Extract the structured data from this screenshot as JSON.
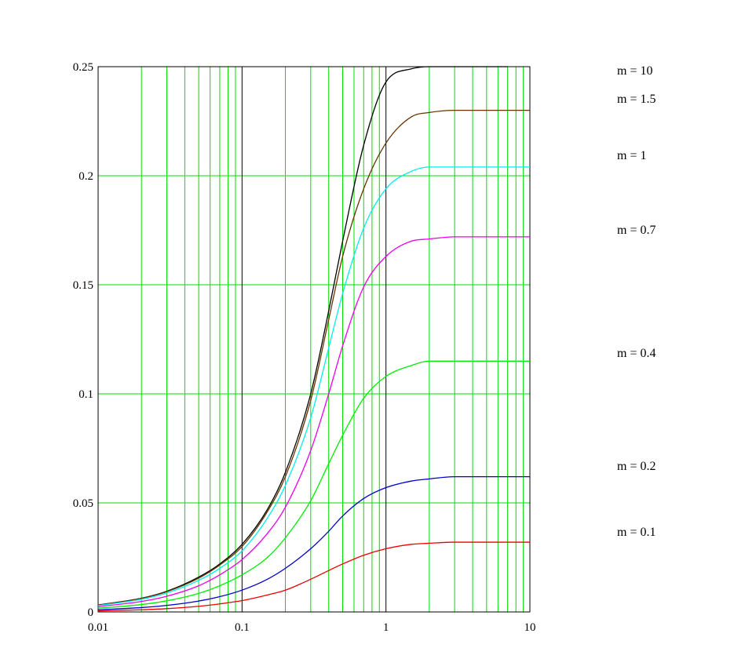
{
  "chart_data": {
    "type": "line",
    "title": "",
    "xlabel": "",
    "ylabel": "",
    "xscale": "log",
    "xlim": [
      0.01,
      10
    ],
    "ylim": [
      0,
      0.25
    ],
    "grid": true,
    "grid_color": "#00dd00",
    "axis_color": "#000000",
    "x_ticks": [
      {
        "value": 0.01,
        "label": "0.01"
      },
      {
        "value": 0.1,
        "label": "0.1"
      },
      {
        "value": 1,
        "label": "1"
      },
      {
        "value": 10,
        "label": "10"
      }
    ],
    "y_ticks": [
      {
        "value": 0,
        "label": "0"
      },
      {
        "value": 0.05,
        "label": "0.05"
      },
      {
        "value": 0.1,
        "label": "0.1"
      },
      {
        "value": 0.15,
        "label": "0.15"
      },
      {
        "value": 0.2,
        "label": "0.2"
      },
      {
        "value": 0.25,
        "label": "0.25"
      }
    ],
    "x": [
      0.01,
      0.02,
      0.03,
      0.05,
      0.07,
      0.1,
      0.15,
      0.2,
      0.3,
      0.4,
      0.5,
      0.7,
      1,
      1.5,
      2,
      3,
      5,
      7,
      10
    ],
    "series": [
      {
        "name": "m = 10",
        "label": "m = 10",
        "color": "#000000",
        "x_end": 7,
        "values": [
          0.0032,
          0.0063,
          0.0095,
          0.016,
          0.022,
          0.031,
          0.047,
          0.064,
          0.1,
          0.138,
          0.17,
          0.214,
          0.243,
          0.249,
          0.25,
          0.25,
          0.25,
          0.25,
          null
        ]
      },
      {
        "name": "m = 1.5",
        "label": "m = 1.5",
        "color": "#663300",
        "values": [
          0.0031,
          0.0062,
          0.0093,
          0.0155,
          0.0215,
          0.03,
          0.046,
          0.062,
          0.097,
          0.134,
          0.163,
          0.194,
          0.215,
          0.227,
          0.229,
          0.23,
          0.23,
          0.23,
          0.23
        ]
      },
      {
        "name": "m = 1",
        "label": "m = 1",
        "color": "#00eeee",
        "values": [
          0.0029,
          0.0058,
          0.0087,
          0.0145,
          0.02,
          0.028,
          0.043,
          0.058,
          0.089,
          0.121,
          0.146,
          0.176,
          0.194,
          0.202,
          0.204,
          0.204,
          0.204,
          0.204,
          0.204
        ]
      },
      {
        "name": "m = 0.7",
        "label": "m = 0.7",
        "color": "#ee00ee",
        "values": [
          0.0024,
          0.0048,
          0.0072,
          0.012,
          0.017,
          0.024,
          0.036,
          0.048,
          0.074,
          0.1,
          0.122,
          0.149,
          0.163,
          0.17,
          0.171,
          0.172,
          0.172,
          0.172,
          0.172
        ]
      },
      {
        "name": "m = 0.4",
        "label": "m = 0.4",
        "color": "#00ee00",
        "values": [
          0.0017,
          0.0034,
          0.0051,
          0.0085,
          0.012,
          0.017,
          0.025,
          0.034,
          0.051,
          0.068,
          0.081,
          0.098,
          0.108,
          0.113,
          0.115,
          0.115,
          0.115,
          0.115,
          0.115
        ]
      },
      {
        "name": "m = 0.2",
        "label": "m = 0.2",
        "color": "#0000cc",
        "values": [
          0.001,
          0.002,
          0.003,
          0.005,
          0.007,
          0.01,
          0.015,
          0.02,
          0.029,
          0.037,
          0.044,
          0.052,
          0.057,
          0.06,
          0.061,
          0.062,
          0.062,
          0.062,
          0.062
        ]
      },
      {
        "name": "m = 0.1",
        "label": "m = 0.1",
        "color": "#ee0000",
        "values": [
          0.0005,
          0.001,
          0.0015,
          0.0026,
          0.0037,
          0.0052,
          0.0078,
          0.01,
          0.015,
          0.019,
          0.022,
          0.026,
          0.029,
          0.031,
          0.0315,
          0.032,
          0.032,
          0.032,
          0.032
        ]
      }
    ],
    "legend": "right, each label placed at its curve's plateau level"
  }
}
